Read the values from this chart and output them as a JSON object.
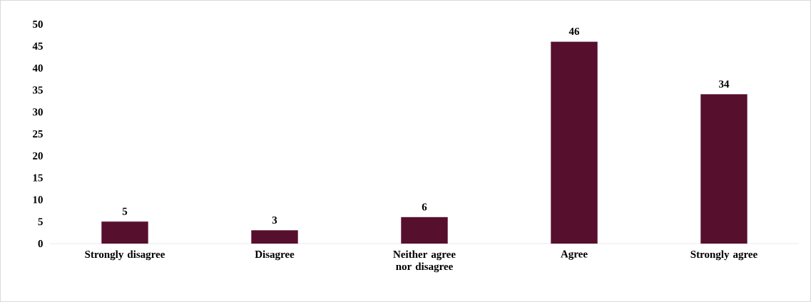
{
  "chart_data": {
    "type": "bar",
    "categories": [
      "Strongly disagree",
      "Disagree",
      "Neither agree nor disagree",
      "Agree",
      "Strongly agree"
    ],
    "values": [
      5,
      3,
      6,
      46,
      34
    ],
    "color": "#570f2e",
    "ylim": [
      0,
      50
    ],
    "yticks": [
      0,
      5,
      10,
      15,
      20,
      25,
      30,
      35,
      40,
      45,
      50
    ],
    "data_labels": true
  }
}
